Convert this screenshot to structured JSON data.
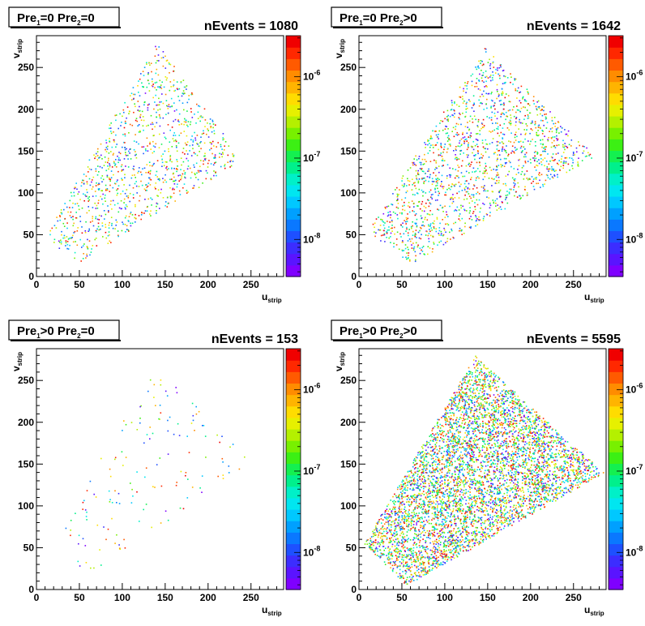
{
  "chart_data": [
    {
      "type": "heatmap",
      "title_parts": [
        "Pre",
        "1",
        "=0  Pre",
        "2",
        "=0"
      ],
      "annotation": "nEvents = 1080",
      "xlabel": {
        "main": "u",
        "sub": "strip"
      },
      "ylabel": {
        "main": "v",
        "sub": "strip"
      },
      "xlim": [
        0,
        288
      ],
      "ylim": [
        0,
        288
      ],
      "x_ticks": [
        "0",
        "50",
        "100",
        "150",
        "200",
        "250"
      ],
      "y_ticks": [
        "0",
        "50",
        "100",
        "150",
        "200",
        "250"
      ],
      "colorbar": {
        "scale": "log",
        "labels": [
          {
            "base": "10",
            "exp": "-6",
            "value": 1e-06
          },
          {
            "base": "10",
            "exp": "-7",
            "value": 1e-07
          },
          {
            "base": "10",
            "exp": "-8",
            "value": 1e-08
          }
        ],
        "range": [
          3.5e-09,
          3.2e-06
        ]
      },
      "region": [
        [
          10,
          50
        ],
        [
          140,
          280
        ],
        [
          240,
          140
        ],
        [
          45,
          15
        ]
      ],
      "points": 1080
    },
    {
      "type": "heatmap",
      "title_parts": [
        "Pre",
        "1",
        "=0  Pre",
        "2",
        ">0"
      ],
      "annotation": "nEvents = 1642",
      "xlabel": {
        "main": "u",
        "sub": "strip"
      },
      "ylabel": {
        "main": "v",
        "sub": "strip"
      },
      "xlim": [
        0,
        288
      ],
      "ylim": [
        0,
        288
      ],
      "x_ticks": [
        "0",
        "50",
        "100",
        "150",
        "200",
        "250"
      ],
      "y_ticks": [
        "0",
        "50",
        "100",
        "150",
        "200",
        "250"
      ],
      "colorbar": {
        "scale": "log",
        "labels": [
          {
            "base": "10",
            "exp": "-6",
            "value": 1e-06
          },
          {
            "base": "10",
            "exp": "-7",
            "value": 1e-07
          },
          {
            "base": "10",
            "exp": "-8",
            "value": 1e-08
          }
        ],
        "range": [
          3.5e-09,
          3.2e-06
        ]
      },
      "region": [
        [
          10,
          55
        ],
        [
          145,
          275
        ],
        [
          275,
          145
        ],
        [
          60,
          15
        ]
      ],
      "points": 1642
    },
    {
      "type": "heatmap",
      "title_parts": [
        "Pre",
        "1",
        ">0  Pre",
        "2",
        "=0"
      ],
      "annotation": "nEvents = 153",
      "xlabel": {
        "main": "u",
        "sub": "strip"
      },
      "ylabel": {
        "main": "v",
        "sub": "strip"
      },
      "xlim": [
        0,
        288
      ],
      "ylim": [
        0,
        288
      ],
      "x_ticks": [
        "0",
        "50",
        "100",
        "150",
        "200",
        "250"
      ],
      "y_ticks": [
        "0",
        "50",
        "100",
        "150",
        "200",
        "250"
      ],
      "colorbar": {
        "scale": "log",
        "labels": [
          {
            "base": "10",
            "exp": "-6",
            "value": 1e-06
          },
          {
            "base": "10",
            "exp": "-7",
            "value": 1e-07
          },
          {
            "base": "10",
            "exp": "-8",
            "value": 1e-08
          }
        ],
        "range": [
          3.5e-09,
          3.2e-06
        ]
      },
      "region": [
        [
          15,
          55
        ],
        [
          135,
          270
        ],
        [
          255,
          150
        ],
        [
          60,
          15
        ]
      ],
      "points": 153
    },
    {
      "type": "heatmap",
      "title_parts": [
        "Pre",
        "1",
        ">0  Pre",
        "2",
        ">0"
      ],
      "annotation": "nEvents = 5595",
      "xlabel": {
        "main": "u",
        "sub": "strip"
      },
      "ylabel": {
        "main": "v",
        "sub": "strip"
      },
      "xlim": [
        0,
        288
      ],
      "ylim": [
        0,
        288
      ],
      "x_ticks": [
        "0",
        "50",
        "100",
        "150",
        "200",
        "250"
      ],
      "y_ticks": [
        "0",
        "50",
        "100",
        "150",
        "200",
        "250"
      ],
      "colorbar": {
        "scale": "log",
        "labels": [
          {
            "base": "10",
            "exp": "-6",
            "value": 1e-06
          },
          {
            "base": "10",
            "exp": "-7",
            "value": 1e-07
          },
          {
            "base": "10",
            "exp": "-8",
            "value": 1e-08
          }
        ],
        "range": [
          3.5e-09,
          3.2e-06
        ]
      },
      "region": [
        [
          5,
          55
        ],
        [
          135,
          280
        ],
        [
          285,
          140
        ],
        [
          55,
          5
        ]
      ],
      "points": 5595
    }
  ],
  "palette": [
    "#7f00ff",
    "#5a14ff",
    "#3c2dff",
    "#1e50ff",
    "#0a78ff",
    "#00a0ff",
    "#00c8ff",
    "#00e6f0",
    "#00f0c8",
    "#00f08c",
    "#14f050",
    "#3cf014",
    "#78f000",
    "#b4f000",
    "#e6f000",
    "#ffdc00",
    "#ffb400",
    "#ff8c00",
    "#ff5a00",
    "#ff2800",
    "#f00000"
  ]
}
